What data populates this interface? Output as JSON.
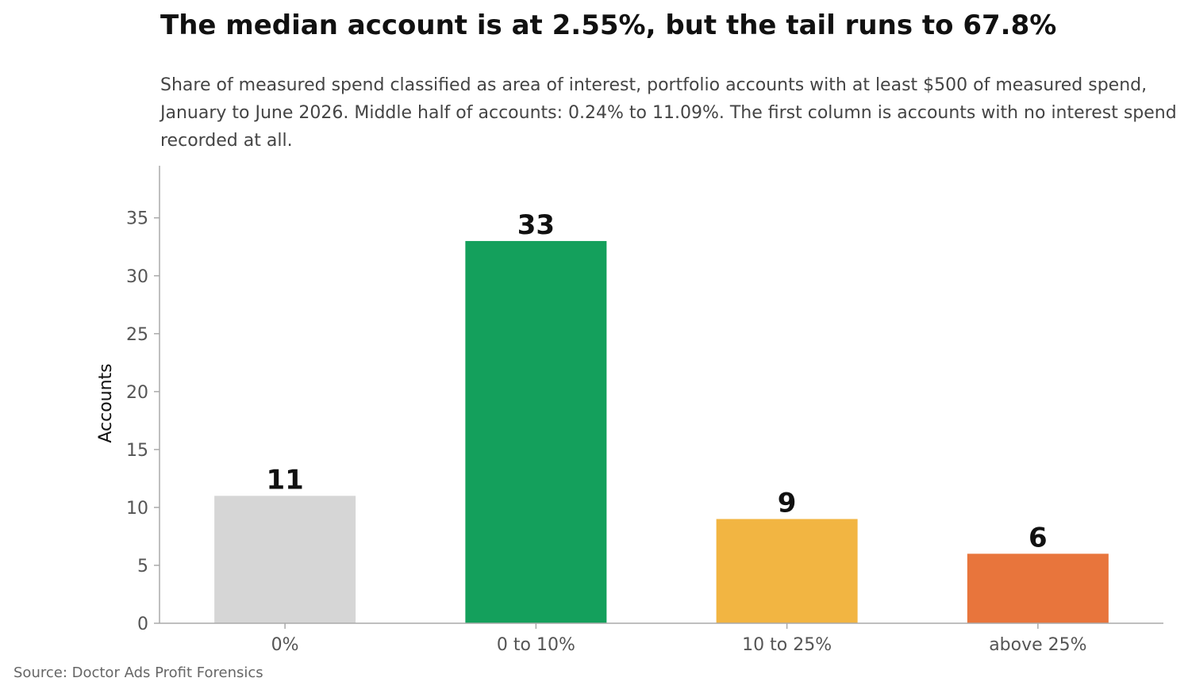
{
  "colors": {
    "zero": "#d6d6d6",
    "low": "#14a05c",
    "mid": "#f2b542",
    "high": "#e8753c",
    "axis": "#aaaaaa",
    "tick_text": "#555555",
    "label_text": "#111111"
  },
  "chart_data": {
    "type": "bar",
    "title": "The median account is at 2.55%, but the tail runs to 67.8%",
    "subtitle": "Share of measured spend classified as area of interest, portfolio accounts with at least $500 of measured spend, January to June 2026. Middle half of accounts: 0.24% to 11.09%. The first column is accounts with no interest spend recorded at all.",
    "source": "Source: Doctor Ads Profit Forensics",
    "xlabel": "",
    "ylabel": "Accounts",
    "categories": [
      "0%",
      "0 to 10%",
      "10 to 25%",
      "above 25%"
    ],
    "values": [
      11,
      33,
      9,
      6
    ],
    "data_labels": [
      "11",
      "33",
      "9",
      "6"
    ],
    "bar_colors": [
      "#d6d6d6",
      "#14a05c",
      "#f2b542",
      "#e8753c"
    ],
    "ylim": [
      0,
      39.5
    ],
    "yticks": [
      0,
      5,
      10,
      15,
      20,
      25,
      30,
      35
    ],
    "grid": false,
    "legend": "none"
  }
}
